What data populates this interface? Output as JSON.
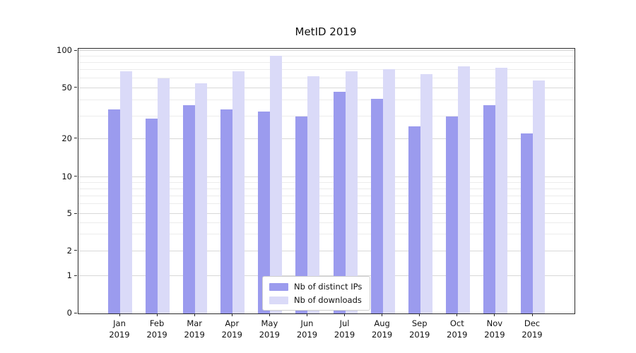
{
  "title": "MetID 2019",
  "chart_data": {
    "type": "bar",
    "title": "MetID 2019",
    "categories": [
      "Jan",
      "Feb",
      "Mar",
      "Apr",
      "May",
      "Jun",
      "Jul",
      "Aug",
      "Sep",
      "Oct",
      "Nov",
      "Dec"
    ],
    "year": "2019",
    "series": [
      {
        "name": "Nb of distinct IPs",
        "color": "#9b9bee",
        "values": [
          34,
          29,
          37,
          34,
          33,
          30,
          47,
          41,
          25,
          30,
          37,
          22
        ]
      },
      {
        "name": "Nb of downloads",
        "color": "#dadaf8",
        "values": [
          68,
          60,
          55,
          68,
          91,
          62,
          68,
          71,
          65,
          75,
          73,
          58
        ]
      }
    ],
    "ylabel": "",
    "xlabel": "",
    "y_ticks": [
      0,
      1,
      2,
      5,
      10,
      20,
      50,
      100
    ],
    "y_minor_ticks": [
      3,
      4,
      6,
      7,
      8,
      9,
      30,
      40,
      60,
      70,
      80,
      90
    ],
    "y_scale": {
      "type": "symlog",
      "anchors": [
        [
          0,
          0
        ],
        [
          1,
          0.141
        ],
        [
          2,
          0.235
        ],
        [
          5,
          0.376
        ],
        [
          10,
          0.515
        ],
        [
          20,
          0.659
        ],
        [
          50,
          0.851
        ],
        [
          100,
          0.992
        ]
      ]
    },
    "ylim": [
      0,
      110
    ],
    "grid": true,
    "legend_position": "lower center"
  }
}
